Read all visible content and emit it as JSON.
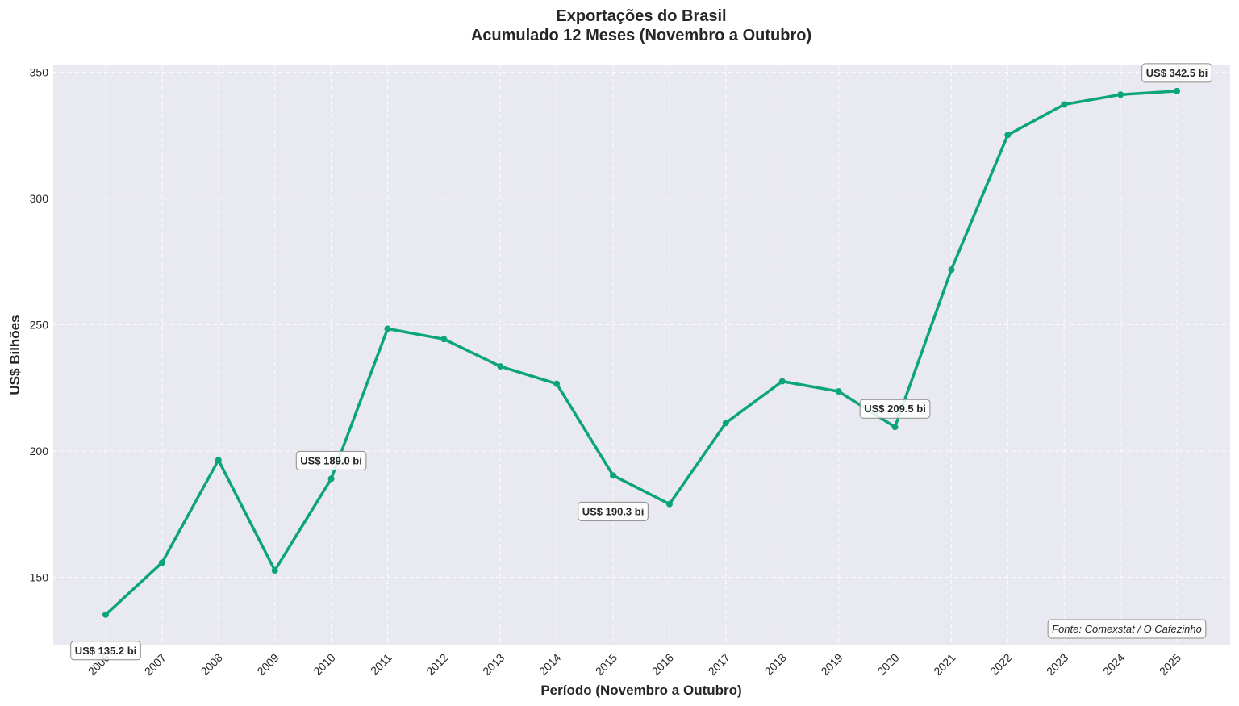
{
  "chart_data": {
    "type": "line",
    "title": "Exportações do Brasil",
    "subtitle": "Acumulado 12 Meses (Novembro a Outubro)",
    "xlabel": "Período (Novembro a Outubro)",
    "ylabel": "US$ Bilhões",
    "x": [
      "2006",
      "2007",
      "2008",
      "2009",
      "2010",
      "2011",
      "2012",
      "2013",
      "2014",
      "2015",
      "2016",
      "2017",
      "2018",
      "2019",
      "2020",
      "2021",
      "2022",
      "2023",
      "2024",
      "2025"
    ],
    "series": [
      {
        "values": [
          135.2,
          155.8,
          196.4,
          152.7,
          189.0,
          248.4,
          244.3,
          233.5,
          226.6,
          190.3,
          179.0,
          211.1,
          227.6,
          223.6,
          209.5,
          271.8,
          325.1,
          337.2,
          341.1,
          342.5
        ],
        "color": "#0ca47a"
      }
    ],
    "ylim": [
      123,
      353
    ],
    "yticks": [
      150,
      200,
      250,
      300,
      350
    ],
    "grid": true,
    "background": "#e9e9f1",
    "annotations": [
      {
        "index": 0,
        "text": "US$ 135.2 bi",
        "position": "below"
      },
      {
        "index": 4,
        "text": "US$ 189.0 bi",
        "position": "above"
      },
      {
        "index": 9,
        "text": "US$ 190.3 bi",
        "position": "below"
      },
      {
        "index": 14,
        "text": "US$ 209.5 bi",
        "position": "above"
      },
      {
        "index": 19,
        "text": "US$ 342.5 bi",
        "position": "above"
      }
    ],
    "source_note": "Fonte: Comexstat / O Cafezinho"
  }
}
